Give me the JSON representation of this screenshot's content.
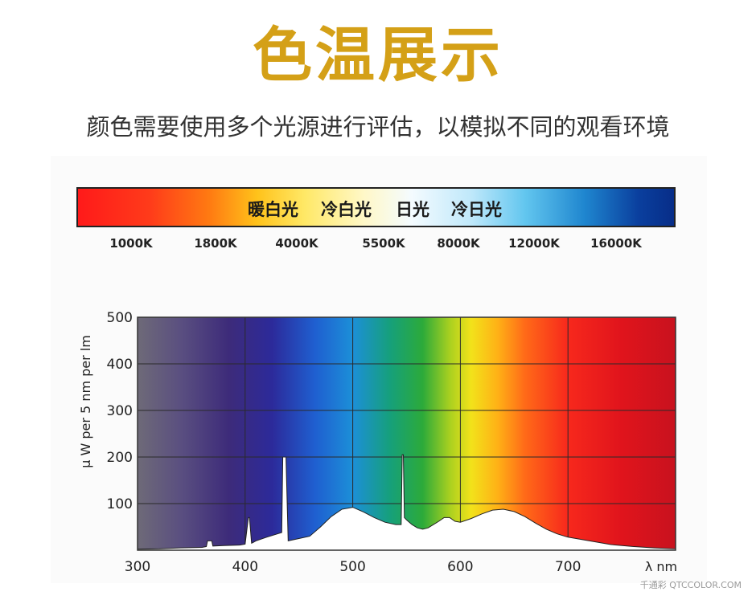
{
  "header": {
    "title": "色温展示",
    "subtitle": "颜色需要使用多个光源进行评估，以模拟不同的观看环境"
  },
  "color_temperature_bar": {
    "labels": [
      "暖白光",
      "冷白光",
      "日光",
      "冷日光"
    ],
    "kelvin_ticks": [
      "1000K",
      "1800K",
      "4000K",
      "5500K",
      "8000K",
      "12000K",
      "16000K"
    ]
  },
  "chart_data": {
    "type": "area",
    "title": "",
    "xlabel": "λ nm",
    "ylabel": "μ W per 5 nm per lm",
    "xlim": [
      300,
      800
    ],
    "ylim": [
      0,
      500
    ],
    "x_ticks": [
      300,
      400,
      500,
      600,
      700
    ],
    "y_ticks": [
      100,
      200,
      300,
      400,
      500
    ],
    "grid": true,
    "background": "visible-spectrum gradient",
    "series": [
      {
        "x": [
          300,
          320,
          340,
          360,
          364,
          365,
          369,
          370,
          380,
          395,
          400,
          403,
          404,
          406,
          407,
          410,
          420,
          430,
          434,
          435,
          438,
          440,
          450,
          460,
          470,
          480,
          490,
          500,
          510,
          520,
          530,
          540,
          545,
          546,
          547,
          548,
          550,
          555,
          560,
          565,
          570,
          575,
          580,
          585,
          590,
          595,
          600,
          610,
          620,
          630,
          640,
          650,
          660,
          670,
          680,
          690,
          700,
          720,
          740,
          760,
          780,
          800
        ],
        "values": [
          2,
          3,
          5,
          6,
          8,
          20,
          20,
          9,
          10,
          11,
          13,
          70,
          70,
          15,
          16,
          20,
          28,
          35,
          38,
          200,
          200,
          20,
          25,
          30,
          50,
          72,
          88,
          92,
          82,
          70,
          60,
          55,
          55,
          205,
          205,
          70,
          65,
          55,
          48,
          45,
          48,
          55,
          62,
          70,
          70,
          62,
          60,
          68,
          78,
          86,
          88,
          83,
          72,
          58,
          45,
          35,
          28,
          20,
          12,
          8,
          5,
          3
        ]
      }
    ]
  },
  "watermark": "千通彩 QTCCOLOR.COM"
}
